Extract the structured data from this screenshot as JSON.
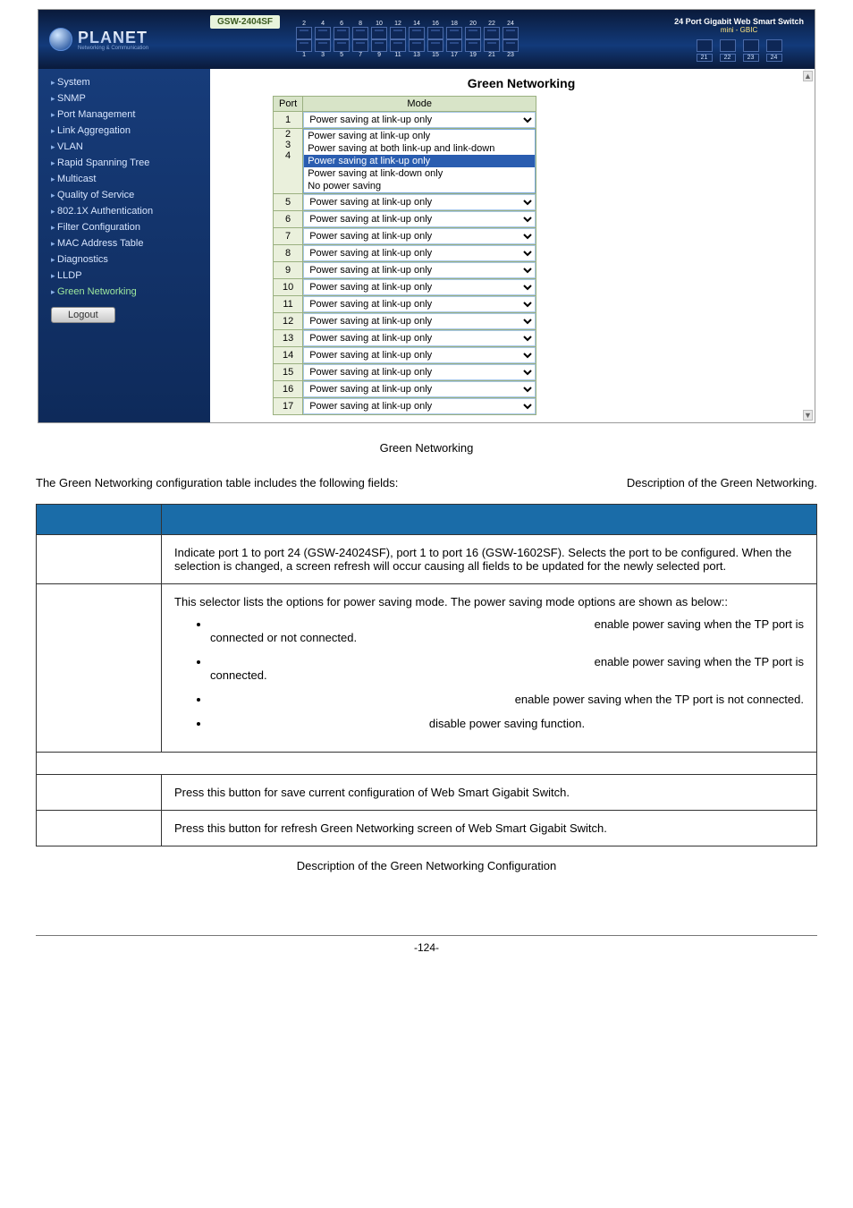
{
  "device": {
    "brand": "PLANET",
    "brand_sub": "Networking & Communication",
    "model": "GSW-2404SF",
    "header_label": "24 Port Gigabit Web Smart Switch",
    "header_sub": "mini - GBIC",
    "top_port_numbers": [
      "2",
      "4",
      "6",
      "8",
      "10",
      "12",
      "14",
      "16",
      "18",
      "20",
      "22",
      "24"
    ],
    "bottom_port_numbers": [
      "1",
      "3",
      "5",
      "7",
      "9",
      "11",
      "13",
      "15",
      "17",
      "19",
      "21",
      "23"
    ],
    "gbic_numbers": [
      "21",
      "22",
      "23",
      "24"
    ]
  },
  "nav": [
    "System",
    "SNMP",
    "Port Management",
    "Link Aggregation",
    "VLAN",
    "Rapid Spanning Tree",
    "Multicast",
    "Quality of Service",
    "802.1X Authentication",
    "Filter Configuration",
    "MAC Address Table",
    "Diagnostics",
    "LLDP",
    "Green Networking"
  ],
  "nav_active_index": 13,
  "logout_label": "Logout",
  "green_networking": {
    "title": "Green Networking",
    "col_port": "Port",
    "col_mode": "Mode",
    "default_mode": "Power saving at link-up only",
    "open_port_value": "Power saving at link-up only",
    "open_options": [
      "Power saving at link-up only",
      "Power saving at both link-up and link-down",
      "Power saving at link-up only",
      "Power saving at link-down only",
      "No power saving"
    ],
    "open_selected_index": 2,
    "rows": [
      {
        "port": "1",
        "open": true
      },
      {
        "port": "5"
      },
      {
        "port": "6"
      },
      {
        "port": "7"
      },
      {
        "port": "8"
      },
      {
        "port": "9"
      },
      {
        "port": "10"
      },
      {
        "port": "11"
      },
      {
        "port": "12"
      },
      {
        "port": "13"
      },
      {
        "port": "14"
      },
      {
        "port": "15"
      },
      {
        "port": "16"
      },
      {
        "port": "17"
      }
    ]
  },
  "doc": {
    "caption1_prefix": "",
    "caption1": "Green Networking",
    "intro_left": "The Green Networking configuration table includes the following fields:",
    "intro_right": "Description of the Green Networking.",
    "desc_rows": {
      "port": "Indicate port 1 to port 24 (GSW-24024SF), port 1 to port 16 (GSW-1602SF). Selects the port to be configured. When the selection is changed, a screen refresh will occur causing all fields to be updated for the newly selected port.",
      "mode_intro": "This selector lists the options for power saving mode. The power saving mode options are shown as below::",
      "mode_items": [
        {
          "pre": "",
          "tail": "enable power saving when the TP port is connected or not connected."
        },
        {
          "pre": "",
          "tail": "enable power saving when the TP port is connected."
        },
        {
          "pre": "",
          "tail": "enable power saving when the TP port is not connected."
        },
        {
          "pre": "",
          "tail": "disable power saving function."
        }
      ],
      "apply": "Press this button for save current configuration of Web Smart Gigabit Switch.",
      "refresh": "Press this button for refresh Green Networking screen of Web Smart Gigabit Switch."
    },
    "caption2": "Description of the Green Networking Configuration",
    "page_number": "-124-"
  }
}
